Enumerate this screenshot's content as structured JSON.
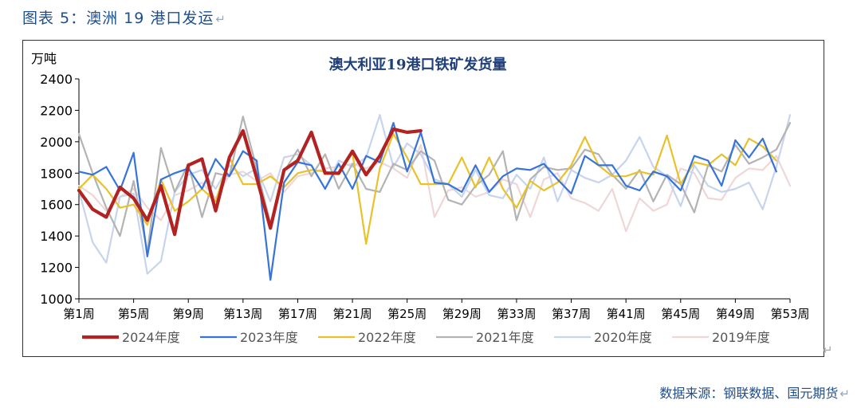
{
  "figure": {
    "caption": "图表 5：澳洲 19 港口发运",
    "ret_mark": "↵"
  },
  "source": {
    "text": "数据来源：钢联数据、国元期货",
    "ret_mark": "↵"
  },
  "chart_data": {
    "type": "line",
    "title": "澳大利亚19港口铁矿发货量",
    "ylabel": "万吨",
    "xlabel": "",
    "ylim": [
      1000,
      2400
    ],
    "yticks": [
      1000,
      1200,
      1400,
      1600,
      1800,
      2000,
      2200,
      2400
    ],
    "xlim": [
      1,
      53
    ],
    "xticks": [
      1,
      5,
      9,
      13,
      17,
      21,
      25,
      29,
      33,
      37,
      41,
      45,
      49,
      53
    ],
    "xtick_labels": [
      "第1周",
      "第5周",
      "第9周",
      "第13周",
      "第17周",
      "第21周",
      "第25周",
      "第29周",
      "第33周",
      "第37周",
      "第41周",
      "第45周",
      "第49周",
      "第53周"
    ],
    "grid": false,
    "legend_position": "bottom",
    "series": [
      {
        "name": "2019年度",
        "color": "#f0d6d6",
        "width": 2.2,
        "values": [
          1720,
          1660,
          1560,
          1650,
          1700,
          1580,
          1500,
          1660,
          1690,
          1740,
          1640,
          1790,
          1810,
          1750,
          1800,
          1680,
          1780,
          1800,
          1830,
          1840,
          1860,
          1830,
          1870,
          1830,
          1770,
          1980,
          1520,
          1690,
          1710,
          1650,
          1680,
          1760,
          1730,
          1520,
          1760,
          1800,
          1640,
          1610,
          1560,
          1700,
          1430,
          1640,
          1560,
          1600,
          1830,
          1800,
          1640,
          1630,
          1770,
          1830,
          1820,
          1910,
          1720
        ]
      },
      {
        "name": "2020年度",
        "color": "#c6d4ee",
        "width": 2.2,
        "values": [
          1690,
          1360,
          1230,
          1650,
          1670,
          1160,
          1240,
          1680,
          1790,
          1820,
          1700,
          1850,
          1780,
          1830,
          1620,
          1900,
          1920,
          1850,
          1700,
          1880,
          1840,
          1900,
          2170,
          1840,
          1990,
          1920,
          1760,
          1730,
          1650,
          1820,
          1660,
          1640,
          1790,
          1700,
          1900,
          1620,
          1820,
          1770,
          1740,
          1790,
          1880,
          2030,
          1840,
          1780,
          1590,
          1850,
          1720,
          1680,
          1700,
          1740,
          1570,
          1840,
          2170
        ]
      },
      {
        "name": "2021年度",
        "color": "#b3b3b3",
        "width": 2.2,
        "values": [
          2050,
          1800,
          1580,
          1400,
          1750,
          1300,
          1960,
          1680,
          1860,
          1520,
          1800,
          1780,
          2160,
          1830,
          1480,
          1810,
          1950,
          1780,
          1920,
          1700,
          1860,
          1700,
          1680,
          1860,
          1820,
          1940,
          1880,
          1630,
          1600,
          1720,
          1790,
          1940,
          1500,
          1760,
          1840,
          1820,
          1830,
          1950,
          1920,
          1790,
          1700,
          1820,
          1620,
          1790,
          1730,
          1550,
          1850,
          1810,
          1980,
          1860,
          1900,
          1950,
          2120
        ]
      },
      {
        "name": "2022年度",
        "color": "#e9c12a",
        "width": 2.2,
        "values": [
          1700,
          1790,
          1700,
          1580,
          1600,
          1470,
          1760,
          1560,
          1620,
          1700,
          1620,
          1900,
          1730,
          1730,
          1780,
          1710,
          1800,
          1820,
          1810,
          1790,
          1930,
          1350,
          1830,
          2050,
          1900,
          1730,
          1730,
          1730,
          1900,
          1710,
          1900,
          1700,
          1580,
          1750,
          1690,
          1740,
          1850,
          2030,
          1850,
          1780,
          1780,
          1810,
          1790,
          2040,
          1730,
          1870,
          1850,
          1920,
          1850,
          2020,
          1970,
          1880,
          null
        ]
      },
      {
        "name": "2023年度",
        "color": "#3674d9",
        "width": 2.2,
        "values": [
          1810,
          1790,
          1840,
          1690,
          1930,
          1270,
          1760,
          1800,
          1830,
          1700,
          1890,
          1780,
          1940,
          1880,
          1120,
          1740,
          1870,
          1850,
          1700,
          1860,
          1700,
          1910,
          1870,
          2120,
          1810,
          2060,
          1740,
          1730,
          1680,
          1850,
          1680,
          1780,
          1830,
          1820,
          1860,
          1760,
          1670,
          1910,
          1850,
          1850,
          1720,
          1690,
          1810,
          1780,
          1690,
          1910,
          1880,
          1720,
          2010,
          1900,
          2020,
          1810,
          null
        ]
      },
      {
        "name": "2024年度",
        "color": "#b22222",
        "width": 4.2,
        "values": [
          1690,
          1570,
          1520,
          1710,
          1640,
          1500,
          1720,
          1410,
          1850,
          1890,
          1560,
          1900,
          2070,
          1770,
          1450,
          1820,
          1880,
          2060,
          1800,
          1800,
          1940,
          1790,
          1910,
          2080,
          2060,
          2070,
          null,
          null,
          null,
          null,
          null,
          null,
          null,
          null,
          null,
          null,
          null,
          null,
          null,
          null,
          null,
          null,
          null,
          null,
          null,
          null,
          null,
          null,
          null,
          null,
          null,
          null,
          null
        ]
      }
    ],
    "legend_order": [
      "2024年度",
      "2023年度",
      "2022年度",
      "2021年度",
      "2020年度",
      "2019年度"
    ]
  }
}
